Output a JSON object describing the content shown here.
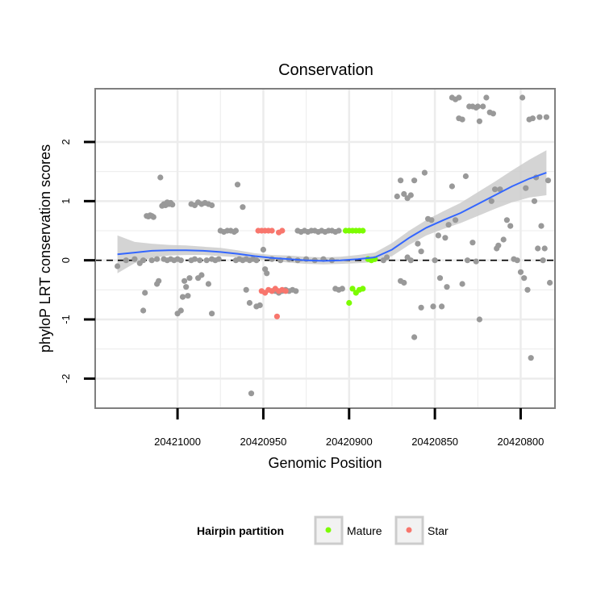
{
  "chart_data": {
    "type": "scatter",
    "title": "Conservation",
    "xlabel": "Genomic Position",
    "ylabel": "phyloP LRT conservation scores",
    "x_reversed": true,
    "xlim": [
      20421048,
      20420780
    ],
    "ylim": [
      -2.5,
      2.9
    ],
    "x_ticks": [
      20421000,
      20420950,
      20420900,
      20420850,
      20420800
    ],
    "x_tick_labels": [
      "20421000",
      "20420950",
      "20420900",
      "20420850",
      "20420800"
    ],
    "y_ticks": [
      -2,
      -1,
      0,
      1,
      2
    ],
    "y_tick_labels": [
      "-2",
      "-1",
      "0",
      "1",
      "2"
    ],
    "reference_line": {
      "y": 0,
      "style": "dashed"
    },
    "legend": {
      "title": "Hairpin partition",
      "entries": [
        {
          "label": "Mature",
          "color": "#7cfc00"
        },
        {
          "label": "Star",
          "color": "#f8766d"
        }
      ]
    },
    "colors": {
      "other": "#999999",
      "mature": "#7cfc00",
      "star": "#f8766d",
      "smooth_line": "#3366ff",
      "ribbon": "#cccccc",
      "panel_bg": "#ffffff",
      "grid": "#ececec"
    },
    "series": [
      {
        "name": "other",
        "points": [
          [
            20421035,
            -0.1
          ],
          [
            20421030,
            0.0
          ],
          [
            20421025,
            0.02
          ],
          [
            20421022,
            -0.05
          ],
          [
            20421020,
            0.0
          ],
          [
            20421015,
            0.0
          ],
          [
            20421012,
            0.02
          ],
          [
            20421020,
            -0.85
          ],
          [
            20421019,
            -0.55
          ],
          [
            20421018,
            0.75
          ],
          [
            20421017,
            0.74
          ],
          [
            20421016,
            0.76
          ],
          [
            20421015,
            0.75
          ],
          [
            20421014,
            0.73
          ],
          [
            20421012,
            -0.4
          ],
          [
            20421011,
            -0.35
          ],
          [
            20421010,
            1.4
          ],
          [
            20421009,
            0.92
          ],
          [
            20421008,
            0.95
          ],
          [
            20421007,
            0.93
          ],
          [
            20421006,
            0.98
          ],
          [
            20421005,
            0.95
          ],
          [
            20421004,
            0.97
          ],
          [
            20421003,
            0.94
          ],
          [
            20421008,
            0.02
          ],
          [
            20421006,
            0.0
          ],
          [
            20421004,
            0.02
          ],
          [
            20421002,
            0.0
          ],
          [
            20421000,
            0.02
          ],
          [
            20420998,
            0.0
          ],
          [
            20421000,
            -0.9
          ],
          [
            20420998,
            -0.85
          ],
          [
            20420997,
            -0.62
          ],
          [
            20420996,
            -0.35
          ],
          [
            20420995,
            -0.45
          ],
          [
            20420994,
            -0.6
          ],
          [
            20420993,
            -0.3
          ],
          [
            20420992,
            0.95
          ],
          [
            20420990,
            0.93
          ],
          [
            20420988,
            0.98
          ],
          [
            20420986,
            0.95
          ],
          [
            20420984,
            0.97
          ],
          [
            20420982,
            0.95
          ],
          [
            20420980,
            0.93
          ],
          [
            20420992,
            0.0
          ],
          [
            20420990,
            0.02
          ],
          [
            20420987,
            0.0
          ],
          [
            20420983,
            0.0
          ],
          [
            20420980,
            0.02
          ],
          [
            20420978,
            0.0
          ],
          [
            20420976,
            0.02
          ],
          [
            20420988,
            -0.3
          ],
          [
            20420986,
            -0.25
          ],
          [
            20420982,
            -0.4
          ],
          [
            20420980,
            -0.9
          ],
          [
            20420975,
            0.5
          ],
          [
            20420973,
            0.48
          ],
          [
            20420971,
            0.5
          ],
          [
            20420969,
            0.5
          ],
          [
            20420967,
            0.48
          ],
          [
            20420966,
            0.5
          ],
          [
            20420965,
            1.28
          ],
          [
            20420962,
            0.9
          ],
          [
            20420966,
            0.0
          ],
          [
            20420964,
            0.02
          ],
          [
            20420962,
            0.0
          ],
          [
            20420960,
            0.02
          ],
          [
            20420958,
            0.0
          ],
          [
            20420956,
            0.02
          ],
          [
            20420954,
            0.0
          ],
          [
            20420960,
            -0.5
          ],
          [
            20420958,
            -0.72
          ],
          [
            20420954,
            -0.78
          ],
          [
            20420952,
            -0.76
          ],
          [
            20420950,
            0.18
          ],
          [
            20420949,
            -0.15
          ],
          [
            20420948,
            -0.22
          ],
          [
            20420957,
            -2.25
          ],
          [
            20420945,
            -0.52
          ],
          [
            20420943,
            -0.52
          ],
          [
            20420941,
            -0.55
          ],
          [
            20420939,
            -0.52
          ],
          [
            20420937,
            -0.5
          ],
          [
            20420935,
            -0.52
          ],
          [
            20420933,
            -0.5
          ],
          [
            20420931,
            -0.52
          ],
          [
            20420930,
            0.5
          ],
          [
            20420928,
            0.48
          ],
          [
            20420926,
            0.5
          ],
          [
            20420924,
            0.48
          ],
          [
            20420922,
            0.5
          ],
          [
            20420920,
            0.5
          ],
          [
            20420918,
            0.48
          ],
          [
            20420916,
            0.5
          ],
          [
            20420914,
            0.48
          ],
          [
            20420912,
            0.5
          ],
          [
            20420910,
            0.5
          ],
          [
            20420908,
            0.48
          ],
          [
            20420906,
            0.5
          ],
          [
            20420945,
            0.02
          ],
          [
            20420940,
            0.0
          ],
          [
            20420935,
            0.02
          ],
          [
            20420930,
            0.0
          ],
          [
            20420925,
            0.02
          ],
          [
            20420920,
            0.0
          ],
          [
            20420915,
            0.02
          ],
          [
            20420910,
            0.0
          ],
          [
            20420908,
            -0.48
          ],
          [
            20420906,
            -0.5
          ],
          [
            20420904,
            -0.48
          ],
          [
            20420885,
            0.02
          ],
          [
            20420880,
            0.0
          ],
          [
            20420878,
            0.05
          ],
          [
            20420872,
            1.08
          ],
          [
            20420870,
            1.35
          ],
          [
            20420868,
            1.12
          ],
          [
            20420866,
            1.05
          ],
          [
            20420864,
            1.1
          ],
          [
            20420862,
            1.35
          ],
          [
            20420870,
            -0.35
          ],
          [
            20420868,
            -0.38
          ],
          [
            20420866,
            0.05
          ],
          [
            20420864,
            0.0
          ],
          [
            20420862,
            -1.3
          ],
          [
            20420860,
            0.28
          ],
          [
            20420858,
            0.15
          ],
          [
            20420858,
            -0.8
          ],
          [
            20420856,
            1.48
          ],
          [
            20420854,
            0.7
          ],
          [
            20420852,
            0.68
          ],
          [
            20420851,
            -0.78
          ],
          [
            20420850,
            0.0
          ],
          [
            20420848,
            0.42
          ],
          [
            20420847,
            -0.3
          ],
          [
            20420846,
            -0.78
          ],
          [
            20420844,
            0.38
          ],
          [
            20420843,
            -0.45
          ],
          [
            20420842,
            0.6
          ],
          [
            20420840,
            1.25
          ],
          [
            20420838,
            0.68
          ],
          [
            20420840,
            2.75
          ],
          [
            20420838,
            2.72
          ],
          [
            20420836,
            2.75
          ],
          [
            20420836,
            2.4
          ],
          [
            20420834,
            2.38
          ],
          [
            20420832,
            1.42
          ],
          [
            20420831,
            0.0
          ],
          [
            20420830,
            2.6
          ],
          [
            20420828,
            2.6
          ],
          [
            20420826,
            2.58
          ],
          [
            20420825,
            2.6
          ],
          [
            20420824,
            2.35
          ],
          [
            20420822,
            2.6
          ],
          [
            20420820,
            2.75
          ],
          [
            20420818,
            2.5
          ],
          [
            20420817,
            1.0
          ],
          [
            20420816,
            2.48
          ],
          [
            20420815,
            1.2
          ],
          [
            20420814,
            0.2
          ],
          [
            20420813,
            0.25
          ],
          [
            20420812,
            1.2
          ],
          [
            20420810,
            0.35
          ],
          [
            20420808,
            0.68
          ],
          [
            20420806,
            0.58
          ],
          [
            20420804,
            0.02
          ],
          [
            20420802,
            0.0
          ],
          [
            20420800,
            -0.2
          ],
          [
            20420799,
            2.75
          ],
          [
            20420798,
            -0.3
          ],
          [
            20420797,
            1.22
          ],
          [
            20420796,
            -0.5
          ],
          [
            20420795,
            2.38
          ],
          [
            20420794,
            -1.65
          ],
          [
            20420793,
            2.4
          ],
          [
            20420792,
            1.0
          ],
          [
            20420791,
            1.4
          ],
          [
            20420790,
            0.2
          ],
          [
            20420789,
            2.42
          ],
          [
            20420788,
            0.58
          ],
          [
            20420787,
            0.0
          ],
          [
            20420786,
            0.2
          ],
          [
            20420785,
            2.42
          ],
          [
            20420784,
            1.35
          ],
          [
            20420783,
            -0.38
          ],
          [
            20420834,
            -0.4
          ],
          [
            20420826,
            -0.02
          ],
          [
            20420828,
            0.3
          ],
          [
            20420824,
            -1.0
          ]
        ]
      },
      {
        "name": "Star",
        "points": [
          [
            20420953,
            0.5
          ],
          [
            20420951,
            0.5
          ],
          [
            20420949,
            0.5
          ],
          [
            20420947,
            0.5
          ],
          [
            20420945,
            0.5
          ],
          [
            20420941,
            0.47
          ],
          [
            20420939,
            0.5
          ],
          [
            20420951,
            -0.52
          ],
          [
            20420949,
            -0.55
          ],
          [
            20420947,
            -0.5
          ],
          [
            20420945,
            -0.52
          ],
          [
            20420943,
            -0.48
          ],
          [
            20420941,
            -0.52
          ],
          [
            20420939,
            -0.5
          ],
          [
            20420937,
            -0.52
          ],
          [
            20420942,
            -0.95
          ]
        ]
      },
      {
        "name": "Mature",
        "points": [
          [
            20420902,
            0.5
          ],
          [
            20420900,
            0.5
          ],
          [
            20420898,
            0.5
          ],
          [
            20420896,
            0.5
          ],
          [
            20420894,
            0.5
          ],
          [
            20420892,
            0.5
          ],
          [
            20420898,
            -0.48
          ],
          [
            20420896,
            -0.55
          ],
          [
            20420894,
            -0.5
          ],
          [
            20420892,
            -0.48
          ],
          [
            20420900,
            -0.72
          ],
          [
            20420889,
            0.02
          ],
          [
            20420887,
            0.0
          ],
          [
            20420885,
            0.02
          ]
        ]
      }
    ],
    "smooth": {
      "x": [
        20421035,
        20421025,
        20421015,
        20421005,
        20420995,
        20420985,
        20420975,
        20420965,
        20420955,
        20420945,
        20420935,
        20420925,
        20420915,
        20420905,
        20420895,
        20420885,
        20420875,
        20420865,
        20420855,
        20420845,
        20420835,
        20420825,
        20420815,
        20420805,
        20420795,
        20420785
      ],
      "y": [
        0.1,
        0.13,
        0.16,
        0.17,
        0.17,
        0.16,
        0.14,
        0.11,
        0.07,
        0.04,
        0.02,
        0.0,
        -0.01,
        0.0,
        0.02,
        0.05,
        0.18,
        0.38,
        0.55,
        0.68,
        0.8,
        0.95,
        1.1,
        1.25,
        1.38,
        1.48
      ],
      "lower": [
        -0.22,
        -0.05,
        0.04,
        0.08,
        0.09,
        0.09,
        0.07,
        0.05,
        0.02,
        -0.01,
        -0.04,
        -0.06,
        -0.07,
        -0.06,
        -0.05,
        -0.03,
        0.07,
        0.26,
        0.42,
        0.53,
        0.63,
        0.75,
        0.87,
        0.98,
        1.06,
        1.1
      ],
      "upper": [
        0.42,
        0.31,
        0.28,
        0.26,
        0.25,
        0.23,
        0.21,
        0.17,
        0.12,
        0.09,
        0.08,
        0.06,
        0.05,
        0.06,
        0.09,
        0.13,
        0.29,
        0.5,
        0.68,
        0.83,
        0.97,
        1.15,
        1.33,
        1.52,
        1.7,
        1.86
      ]
    }
  }
}
